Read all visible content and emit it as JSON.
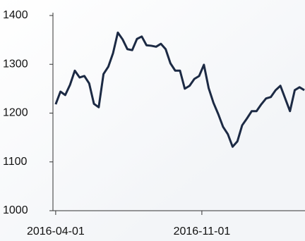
{
  "chart_data": {
    "type": "line",
    "x": [
      "2016-04-01",
      "2016-04-08",
      "2016-04-15",
      "2016-04-22",
      "2016-04-29",
      "2016-05-06",
      "2016-05-13",
      "2016-05-20",
      "2016-05-27",
      "2016-06-03",
      "2016-06-10",
      "2016-06-17",
      "2016-06-24",
      "2016-07-01",
      "2016-07-08",
      "2016-07-15",
      "2016-07-22",
      "2016-07-29",
      "2016-08-05",
      "2016-08-12",
      "2016-08-19",
      "2016-08-26",
      "2016-09-02",
      "2016-09-09",
      "2016-09-16",
      "2016-09-23",
      "2016-09-30",
      "2016-10-07",
      "2016-10-14",
      "2016-10-21",
      "2016-10-28",
      "2016-11-04",
      "2016-11-11",
      "2016-11-18",
      "2016-11-25",
      "2016-12-02",
      "2016-12-09",
      "2016-12-16",
      "2016-12-23",
      "2016-12-30",
      "2017-01-06",
      "2017-01-13",
      "2017-01-20",
      "2017-01-27",
      "2017-02-03",
      "2017-02-10",
      "2017-02-17",
      "2017-02-24",
      "2017-03-03",
      "2017-03-10",
      "2017-03-17",
      "2017-03-24",
      "2017-03-31"
    ],
    "series": [
      {
        "name": null,
        "color": "#1c2a44",
        "values": [
          1218,
          1244,
          1237,
          1258,
          1287,
          1273,
          1276,
          1261,
          1219,
          1212,
          1280,
          1295,
          1323,
          1365,
          1351,
          1331,
          1329,
          1352,
          1357,
          1339,
          1338,
          1336,
          1342,
          1331,
          1302,
          1287,
          1287,
          1250,
          1256,
          1270,
          1276,
          1299,
          1251,
          1221,
          1198,
          1172,
          1157,
          1131,
          1142,
          1175,
          1189,
          1204,
          1204,
          1218,
          1230,
          1233,
          1247,
          1256,
          1230,
          1204,
          1247,
          1253,
          1247
        ]
      }
    ],
    "xlim": [
      "2016-03-28",
      "2017-04-01"
    ],
    "xticks": [
      "2016-04-01",
      "2016-11-01"
    ],
    "ylim": [
      1000,
      1400
    ],
    "yticks": [
      1000,
      1100,
      1200,
      1300,
      1400
    ]
  }
}
